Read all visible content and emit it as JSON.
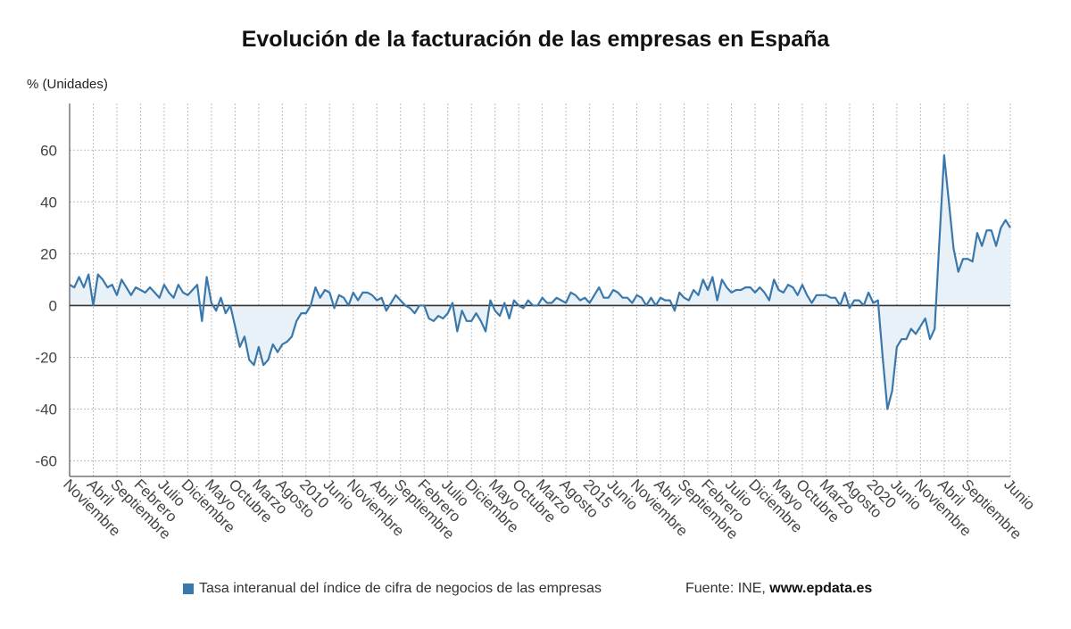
{
  "title": "Evolución de la facturación de las empresas en España",
  "unit_label": "% (Unidades)",
  "legend": {
    "label": "Tasa interanual del índice de cifra de negocios de las empresas",
    "color": "#3a78ab"
  },
  "source": {
    "prefix": "Fuente: INE, ",
    "site": "www.epdata.es"
  },
  "colors": {
    "line": "#3a78ab",
    "fill": "#e9f1f8",
    "zero_line": "#333333",
    "grid": "#bdbdbd"
  },
  "chart_data": {
    "type": "area",
    "ylim": [
      -66,
      78
    ],
    "yticks": [
      60,
      40,
      20,
      0,
      -20,
      -40,
      -60
    ],
    "x_ticks": [
      {
        "i": 0,
        "label": "Noviembre"
      },
      {
        "i": 5,
        "label": "Abril"
      },
      {
        "i": 10,
        "label": "Septiembre"
      },
      {
        "i": 15,
        "label": "Febrero"
      },
      {
        "i": 20,
        "label": "Julio"
      },
      {
        "i": 25,
        "label": "Diciembre"
      },
      {
        "i": 30,
        "label": "Mayo"
      },
      {
        "i": 35,
        "label": "Octubre"
      },
      {
        "i": 40,
        "label": "Marzo"
      },
      {
        "i": 45,
        "label": "Agosto"
      },
      {
        "i": 50,
        "label": "2010"
      },
      {
        "i": 55,
        "label": "Junio"
      },
      {
        "i": 60,
        "label": "Noviembre"
      },
      {
        "i": 65,
        "label": "Abril"
      },
      {
        "i": 70,
        "label": "Septiembre"
      },
      {
        "i": 75,
        "label": "Febrero"
      },
      {
        "i": 80,
        "label": "Julio"
      },
      {
        "i": 85,
        "label": "Diciembre"
      },
      {
        "i": 90,
        "label": "Mayo"
      },
      {
        "i": 95,
        "label": "Octubre"
      },
      {
        "i": 100,
        "label": "Marzo"
      },
      {
        "i": 105,
        "label": "Agosto"
      },
      {
        "i": 110,
        "label": "2015"
      },
      {
        "i": 115,
        "label": "Junio"
      },
      {
        "i": 120,
        "label": "Noviembre"
      },
      {
        "i": 125,
        "label": "Abril"
      },
      {
        "i": 130,
        "label": "Septiembre"
      },
      {
        "i": 135,
        "label": "Febrero"
      },
      {
        "i": 140,
        "label": "Julio"
      },
      {
        "i": 145,
        "label": "Diciembre"
      },
      {
        "i": 150,
        "label": "Mayo"
      },
      {
        "i": 155,
        "label": "Octubre"
      },
      {
        "i": 160,
        "label": "Marzo"
      },
      {
        "i": 165,
        "label": "Agosto"
      },
      {
        "i": 170,
        "label": "2020"
      },
      {
        "i": 175,
        "label": "Junio"
      },
      {
        "i": 180,
        "label": "Noviembre"
      },
      {
        "i": 185,
        "label": "Abril"
      },
      {
        "i": 190,
        "label": "Septiembre"
      },
      {
        "i": 199,
        "label": "Junio"
      }
    ],
    "values": [
      8,
      7,
      11,
      7,
      12,
      0,
      12,
      10,
      7,
      8,
      4,
      10,
      7,
      4,
      7,
      6,
      5,
      7,
      5,
      3,
      8,
      5,
      3,
      8,
      5,
      4,
      6,
      8,
      -6,
      11,
      1,
      -2,
      3,
      -3,
      0,
      -8,
      -16,
      -12,
      -21,
      -23,
      -16,
      -23,
      -21,
      -15,
      -18,
      -15,
      -14,
      -12,
      -6,
      -3,
      -3,
      0,
      7,
      3,
      6,
      5,
      -1,
      4,
      3,
      0,
      5,
      2,
      5,
      5,
      4,
      2,
      3,
      -2,
      1,
      4,
      2,
      0,
      -1,
      -3,
      0,
      0,
      -5,
      -6,
      -4,
      -5,
      -3,
      1,
      -10,
      -2,
      -6,
      -6,
      -3,
      -6,
      -10,
      2,
      -2,
      -4,
      1,
      -5,
      2,
      0,
      -1,
      2,
      0,
      0,
      3,
      1,
      1,
      3,
      2,
      1,
      5,
      4,
      2,
      3,
      1,
      4,
      7,
      3,
      3,
      6,
      5,
      3,
      3,
      1,
      4,
      3,
      0,
      3,
      0,
      3,
      2,
      2,
      -2,
      5,
      3,
      2,
      6,
      4,
      10,
      6,
      11,
      2,
      10,
      7,
      5,
      6,
      6,
      7,
      7,
      5,
      7,
      5,
      2,
      10,
      6,
      5,
      8,
      7,
      4,
      8,
      4,
      1,
      4,
      4,
      4,
      3,
      3,
      0,
      5,
      -1,
      2,
      2,
      0,
      5,
      1,
      2,
      -20,
      -40,
      -33,
      -16,
      -13,
      -13,
      -9,
      -11,
      -8,
      -5,
      -13,
      -9,
      25,
      58,
      40,
      22,
      13,
      18,
      18,
      17,
      28,
      23,
      29,
      29,
      23,
      30,
      33,
      30
    ]
  }
}
